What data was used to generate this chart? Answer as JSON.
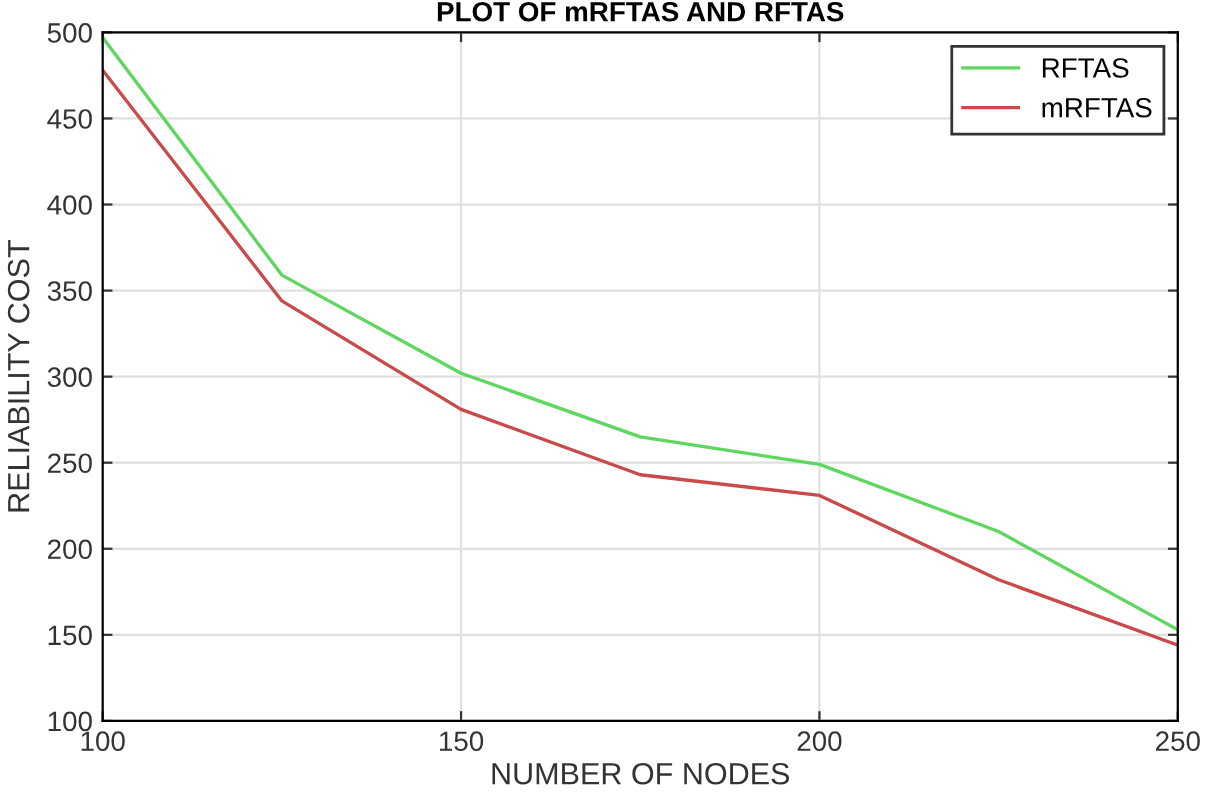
{
  "chart_data": {
    "type": "line",
    "title": "PLOT OF mRFTAS AND RFTAS",
    "xlabel": "NUMBER OF NODES",
    "ylabel": "RELIABILITY COST",
    "x": [
      100,
      125,
      150,
      175,
      200,
      225,
      250
    ],
    "series": [
      {
        "name": "RFTAS",
        "color": "#5fd65f",
        "values": [
          497,
          359,
          302,
          265,
          249,
          210,
          153
        ]
      },
      {
        "name": "mRFTAS",
        "color": "#c84a4a",
        "values": [
          478,
          344,
          281,
          243,
          231,
          182,
          144
        ]
      }
    ],
    "xlim": [
      100,
      250
    ],
    "xticks": [
      100,
      150,
      200,
      250
    ],
    "ylim": [
      100,
      500
    ],
    "yticks": [
      100,
      150,
      200,
      250,
      300,
      350,
      400,
      450,
      500
    ],
    "grid": true,
    "legend": "top right",
    "marker": "none",
    "line_style": "solid"
  }
}
